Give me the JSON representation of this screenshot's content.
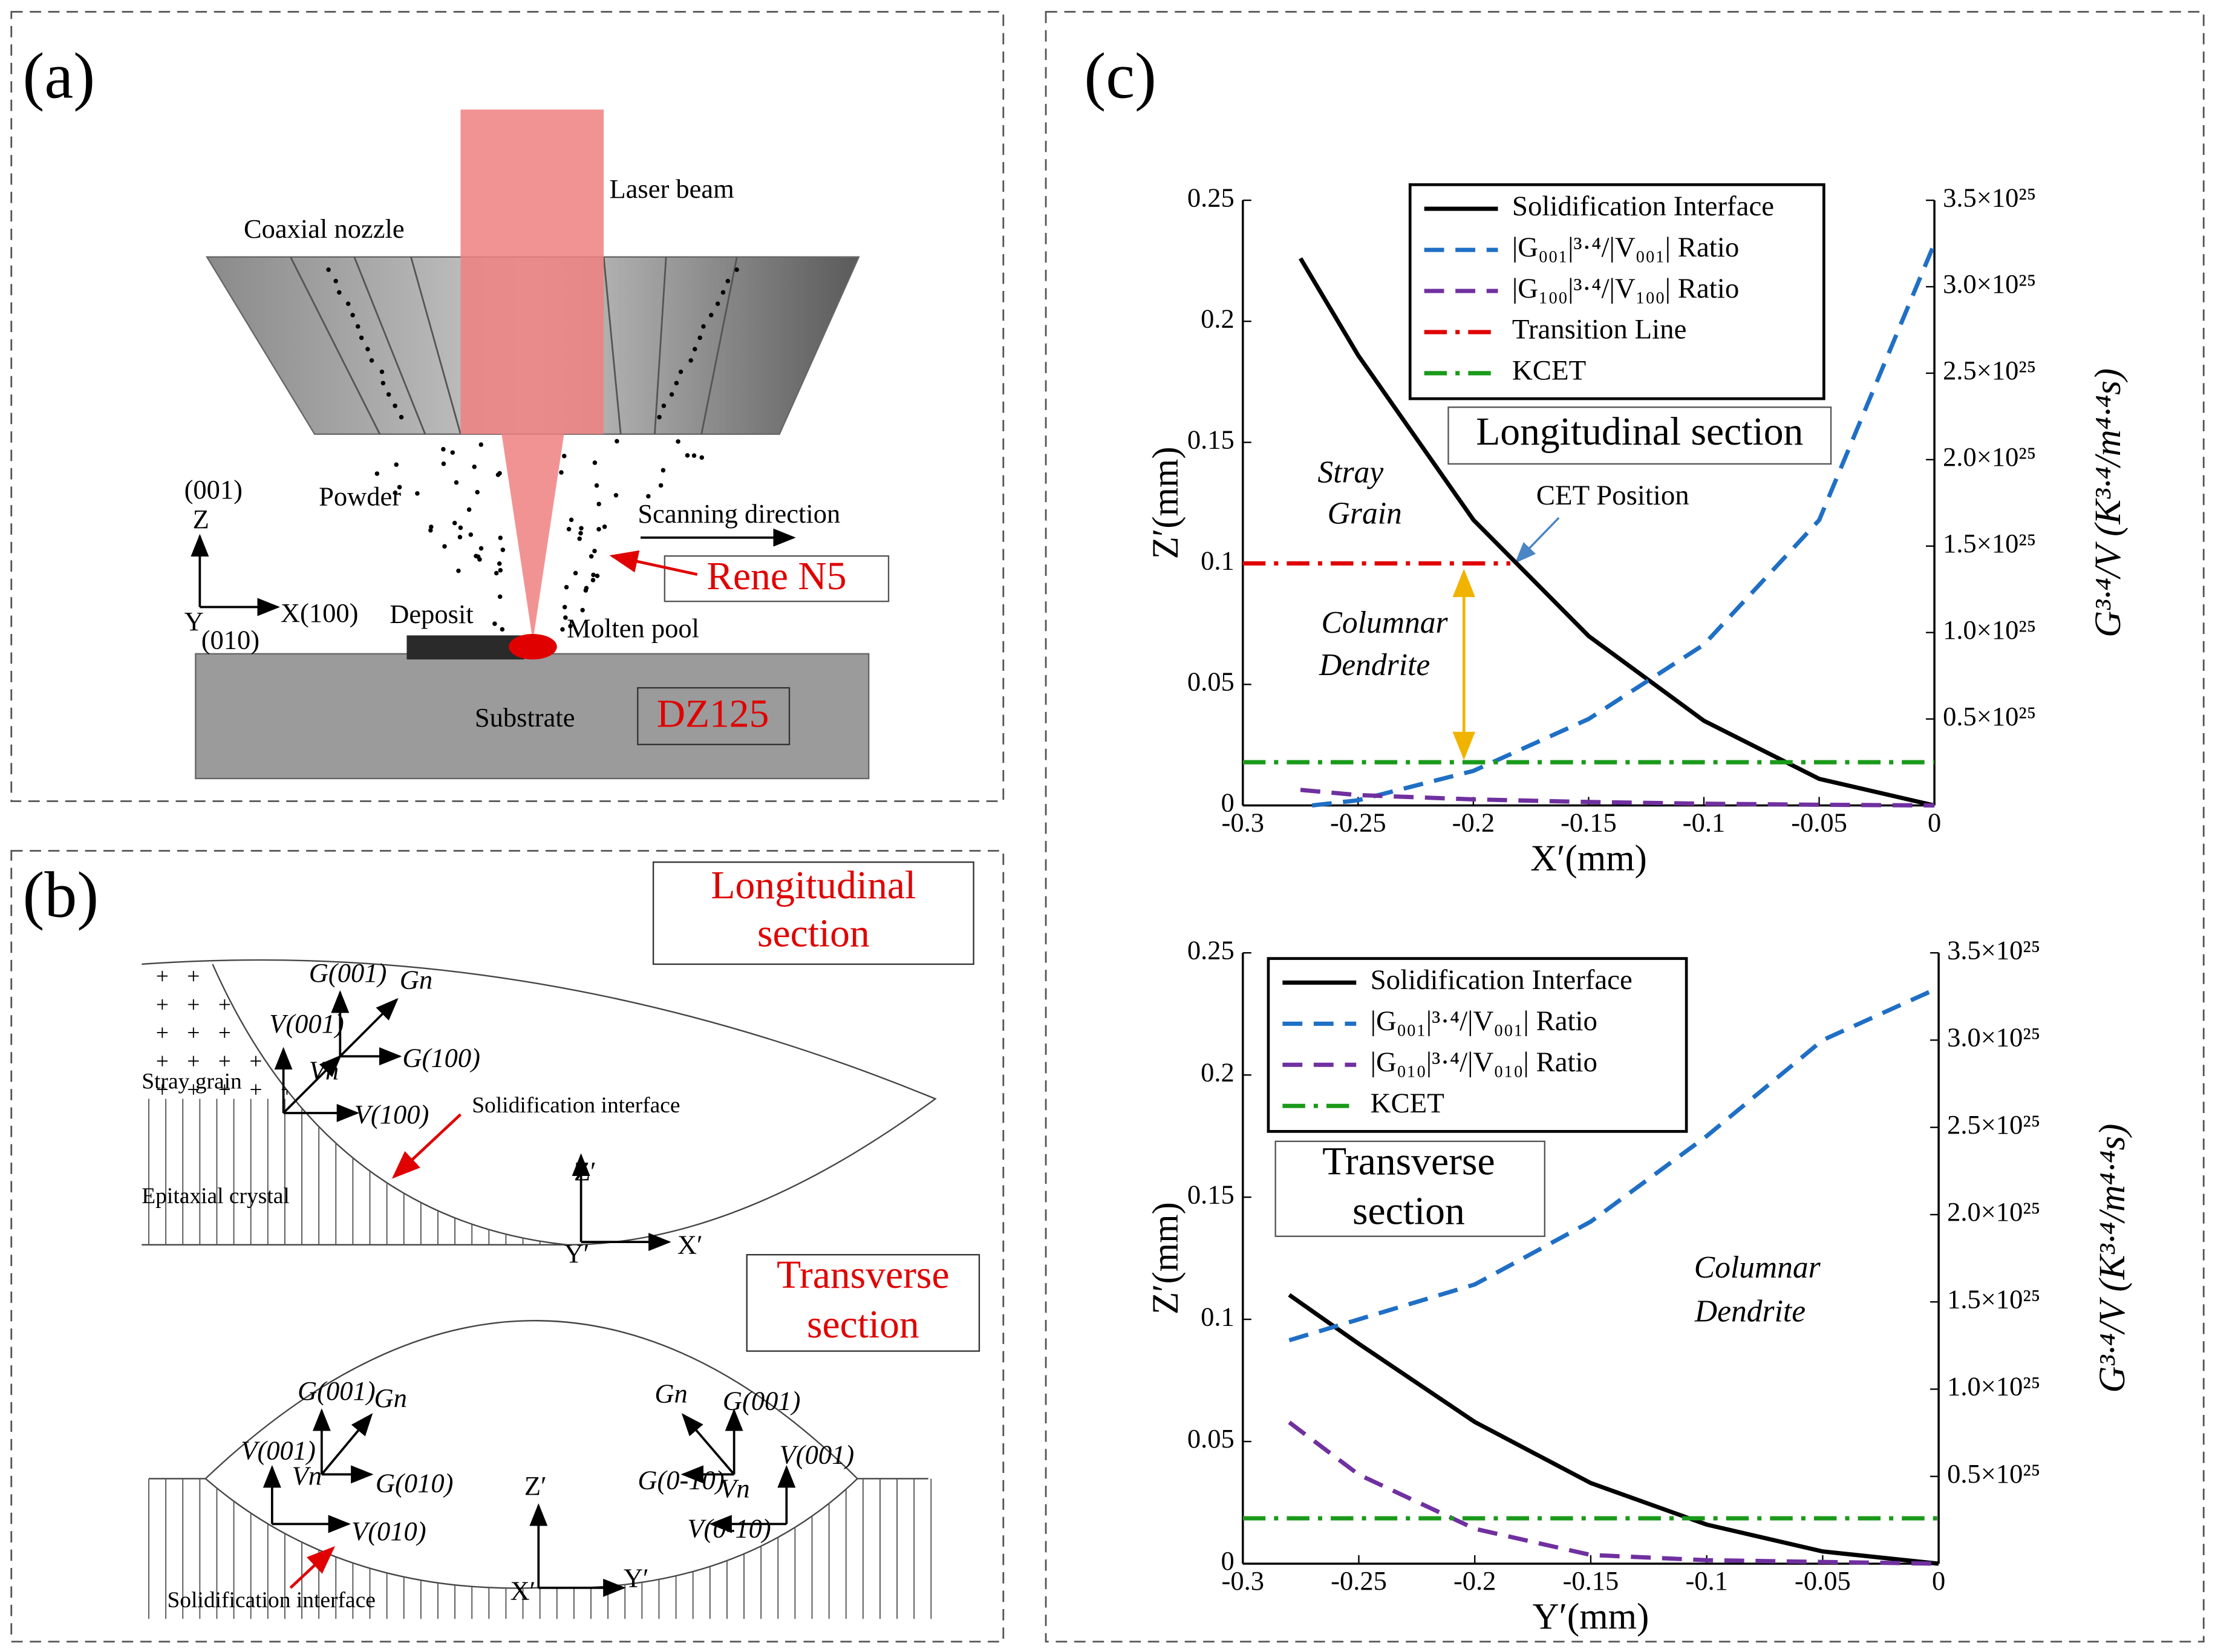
{
  "panel_a": {
    "label": "(a)",
    "laser_beam": "Laser beam",
    "nozzle": "Coaxial  nozzle",
    "powder": "Powder",
    "z_dir": "(001)",
    "z": "Z",
    "x": "X(100)",
    "y": "Y",
    "y_dir": "(010)",
    "deposit": "Deposit",
    "scanning": "Scanning direction",
    "rene": "Rene N5",
    "pool": "Molten pool",
    "substrate": "Substrate",
    "dz": "DZ125"
  },
  "panel_b": {
    "label": "(b)",
    "longitudinal": {
      "title_1": "Longitudinal",
      "title_2": "section",
      "stray": "Stray grain",
      "epitaxial": "Epitaxial crystal",
      "interface": "Solidification interface",
      "g001": "G(001)",
      "gn": "Gn",
      "v001": "V(001)",
      "vn": "Vn",
      "g100": "G(100)",
      "v100": "V(100)",
      "z": "Z′",
      "y": "Y′",
      "x": "X′"
    },
    "transverse": {
      "title_1": "Transverse",
      "title_2": "section",
      "g001": "G(001)",
      "gn": "Gn",
      "v001": "V(001)",
      "vn": "Vn",
      "g010": "G(010)",
      "v010": "V(010)",
      "z": "Z′",
      "x": "X′",
      "y": "Y′",
      "gn_r": "Gn",
      "g001_r": "G(001)",
      "g0m10": "G(0-10)",
      "vn_r": "Vn",
      "v001_r": "V(001)",
      "v0m10": "V(0-10)",
      "interface": "Solidification interface"
    }
  },
  "chart_label": "(c)",
  "chart_data": [
    {
      "type": "line",
      "xlabel": "X′(mm)",
      "ylabel": "Z′(mm)",
      "y2label": "G³·⁴/V (K³·⁴/m⁴·⁴s)",
      "xlim": [
        -0.3,
        0
      ],
      "ylim": [
        0,
        0.25
      ],
      "y2lim": [
        0,
        3.5e+25
      ],
      "xticks": [
        -0.3,
        -0.25,
        -0.2,
        -0.15,
        -0.1,
        -0.05,
        0
      ],
      "yticks": [
        0,
        0.05,
        0.1,
        0.15,
        0.2,
        0.25
      ],
      "y2ticks": [
        {
          "value": 5e+24,
          "label": "0.5×10²⁵"
        },
        {
          "value": 1e+25,
          "label": "1.0×10²⁵"
        },
        {
          "value": 1.5e+25,
          "label": "1.5×10²⁵"
        },
        {
          "value": 2e+25,
          "label": "2.0×10²⁵"
        },
        {
          "value": 2.5e+25,
          "label": "2.5×10²⁵"
        },
        {
          "value": 3e+25,
          "label": "3.0×10²⁵"
        },
        {
          "value": 3.5e+25,
          "label": "3.5×10²⁵"
        }
      ],
      "series": [
        {
          "name": "Solidification Interface",
          "color": "#000000",
          "linestyle": "solid",
          "axis": "y",
          "x": [
            -0.275,
            -0.25,
            -0.2,
            -0.15,
            -0.1,
            -0.05,
            0
          ],
          "values": [
            0.226,
            0.186,
            0.118,
            0.07,
            0.035,
            0.011,
            0
          ]
        },
        {
          "name": "|G₀₀₁|³·⁴/|V₀₀₁| Ratio",
          "color": "#1f6fc5",
          "linestyle": "dashed",
          "axis": "y2",
          "x": [
            -0.27,
            -0.25,
            -0.2,
            -0.15,
            -0.1,
            -0.05,
            0
          ],
          "values": [
            0,
            3e+23,
            2e+24,
            5e+24,
            9.3e+24,
            1.65e+25,
            3.25e+25
          ]
        },
        {
          "name": "|G₁₀₀|³·⁴/|V₁₀₀| Ratio",
          "color": "#7030a0",
          "linestyle": "dashed",
          "axis": "y2",
          "x": [
            -0.275,
            -0.25,
            -0.2,
            -0.15,
            -0.1,
            -0.05,
            0
          ],
          "values": [
            9e+23,
            6e+23,
            3.5e+23,
            2e+23,
            1e+23,
            4e+22,
            0
          ]
        },
        {
          "name": "Transition Line",
          "color": "#e00000",
          "linestyle": "dashdot",
          "axis": "y",
          "x": [
            -0.3,
            -0.184
          ],
          "values": [
            0.1,
            0.1
          ]
        },
        {
          "name": "KCET",
          "color": "#1a9a1a",
          "linestyle": "dashdot",
          "axis": "y2",
          "x": [
            -0.3,
            0
          ],
          "values": [
            2.5e+24,
            2.5e+24
          ]
        }
      ],
      "annotations": [
        {
          "text": "Longitudinal section",
          "color": "#e00000"
        },
        {
          "text": "Stray",
          "color": "#000000"
        },
        {
          "text": "Grain",
          "color": "#000000"
        },
        {
          "text": "Columnar",
          "color": "#000000"
        },
        {
          "text": "Dendrite",
          "color": "#000000"
        },
        {
          "text": "CET Position",
          "color": "#000000"
        }
      ]
    },
    {
      "type": "line",
      "xlabel": "Y′(mm)",
      "ylabel": "Z′(mm)",
      "y2label": "G³·⁴/V (K³·⁴/m⁴·⁴s)",
      "xlim": [
        -0.3,
        0
      ],
      "ylim": [
        0,
        0.25
      ],
      "y2lim": [
        0,
        3.5e+25
      ],
      "xticks": [
        -0.3,
        -0.25,
        -0.2,
        -0.15,
        -0.1,
        -0.05,
        0
      ],
      "yticks": [
        0,
        0.05,
        0.1,
        0.15,
        0.2,
        0.25
      ],
      "y2ticks": [
        {
          "value": 5e+24,
          "label": "0.5×10²⁵"
        },
        {
          "value": 1e+25,
          "label": "1.0×10²⁵"
        },
        {
          "value": 1.5e+25,
          "label": "1.5×10²⁵"
        },
        {
          "value": 2e+25,
          "label": "2.0×10²⁵"
        },
        {
          "value": 2.5e+25,
          "label": "2.5×10²⁵"
        },
        {
          "value": 3e+25,
          "label": "3.0×10²⁵"
        },
        {
          "value": 3.5e+25,
          "label": "3.5×10²⁵"
        }
      ],
      "series": [
        {
          "name": "Solidification Interface",
          "color": "#000000",
          "linestyle": "solid",
          "axis": "y",
          "x": [
            -0.28,
            -0.25,
            -0.2,
            -0.15,
            -0.1,
            -0.05,
            0
          ],
          "values": [
            0.11,
            0.09,
            0.058,
            0.033,
            0.016,
            0.005,
            0
          ]
        },
        {
          "name": "|G₀₀₁|³·⁴/|V₀₀₁| Ratio",
          "color": "#1f6fc5",
          "linestyle": "dashed",
          "axis": "y2",
          "x": [
            -0.28,
            -0.25,
            -0.2,
            -0.15,
            -0.1,
            -0.05,
            0
          ],
          "values": [
            1.28e+25,
            1.4e+25,
            1.6e+25,
            1.96e+25,
            2.45e+25,
            3e+25,
            3.3e+25
          ]
        },
        {
          "name": "|G₀₁₀|³·⁴/|V₀₁₀| Ratio",
          "color": "#7030a0",
          "linestyle": "dashed",
          "axis": "y2",
          "x": [
            -0.28,
            -0.25,
            -0.2,
            -0.15,
            -0.1,
            -0.05,
            0
          ],
          "values": [
            8.1e+24,
            5.1e+24,
            2e+24,
            5e+23,
            2e+23,
            1e+23,
            0
          ]
        },
        {
          "name": "KCET",
          "color": "#1a9a1a",
          "linestyle": "dashdot",
          "axis": "y2",
          "x": [
            -0.3,
            0
          ],
          "values": [
            2.6e+24,
            2.6e+24
          ]
        }
      ],
      "annotations": [
        {
          "text": "Transverse",
          "color": "#e00000"
        },
        {
          "text": "section",
          "color": "#e00000"
        },
        {
          "text": "Columnar",
          "color": "#000000"
        },
        {
          "text": "Dendrite",
          "color": "#000000"
        }
      ]
    }
  ]
}
